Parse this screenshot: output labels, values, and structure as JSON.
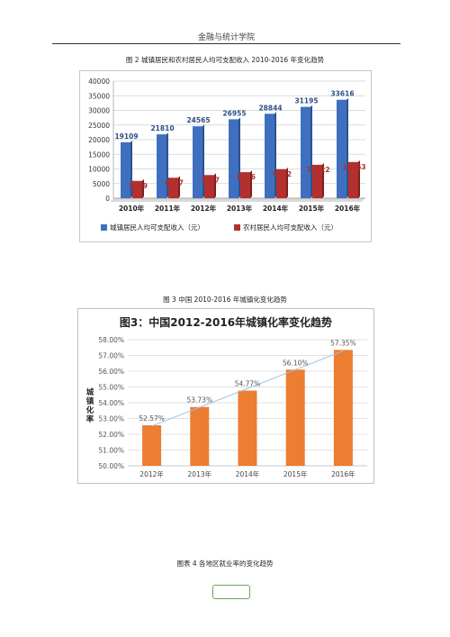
{
  "header": {
    "title": "金融与统计学院"
  },
  "captions": {
    "fig2": "图 2 城镇居民和农村居民人均可支配收入 2010-2016 年变化趋势",
    "fig3": "图 3 中国 2010-2016 年城镇化变化趋势",
    "fig4": "图表 4 各地区就业率的变化趋势"
  },
  "chart_data": [
    {
      "type": "bar",
      "categories": [
        "2010年",
        "2011年",
        "2012年",
        "2013年",
        "2014年",
        "2015年",
        "2016年"
      ],
      "series": [
        {
          "name": "城镇居民人均可支配收入（元）",
          "values": [
            19109,
            21810,
            24565,
            26955,
            28844,
            31195,
            33616
          ],
          "color": "#3f6fbf"
        },
        {
          "name": "农村居民人均可支配收入（元）",
          "values": [
            5919,
            6997,
            7917,
            8896,
            9892,
            11422,
            12363
          ],
          "color": "#b3302e"
        }
      ],
      "yticks": [
        "0",
        "5000",
        "10000",
        "15000",
        "20000",
        "25000",
        "30000",
        "35000",
        "40000"
      ],
      "ylim": [
        0,
        40000
      ],
      "legend_position": "bottom"
    },
    {
      "type": "bar",
      "title": "图3：中国2012-2016年城镇化率变化趋势",
      "ylabel": "城镇化率",
      "categories": [
        "2012年",
        "2013年",
        "2014年",
        "2015年",
        "2016年"
      ],
      "values": [
        52.57,
        53.73,
        54.77,
        56.1,
        57.35
      ],
      "data_labels": [
        "52.57%",
        "53.73%",
        "54.77%",
        "56.10%",
        "57.35%"
      ],
      "yticks": [
        "50.00%",
        "51.00%",
        "52.00%",
        "53.00%",
        "54.00%",
        "55.00%",
        "56.00%",
        "57.00%",
        "58.00%"
      ],
      "ylim": [
        50,
        58
      ],
      "bar_color": "#ed7d31",
      "trendline": "linear",
      "trendline_color": "#9dc3e6",
      "grid": true
    }
  ]
}
